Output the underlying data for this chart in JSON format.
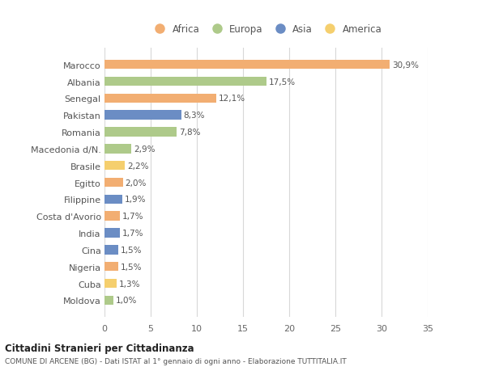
{
  "countries": [
    "Marocco",
    "Albania",
    "Senegal",
    "Pakistan",
    "Romania",
    "Macedonia d/N.",
    "Brasile",
    "Egitto",
    "Filippine",
    "Costa d'Avorio",
    "India",
    "Cina",
    "Nigeria",
    "Cuba",
    "Moldova"
  ],
  "values": [
    30.9,
    17.5,
    12.1,
    8.3,
    7.8,
    2.9,
    2.2,
    2.0,
    1.9,
    1.7,
    1.7,
    1.5,
    1.5,
    1.3,
    1.0
  ],
  "labels": [
    "30,9%",
    "17,5%",
    "12,1%",
    "8,3%",
    "7,8%",
    "2,9%",
    "2,2%",
    "2,0%",
    "1,9%",
    "1,7%",
    "1,7%",
    "1,5%",
    "1,5%",
    "1,3%",
    "1,0%"
  ],
  "continents": [
    "Africa",
    "Europa",
    "Africa",
    "Asia",
    "Europa",
    "Europa",
    "America",
    "Africa",
    "Asia",
    "Africa",
    "Asia",
    "Asia",
    "Africa",
    "America",
    "Europa"
  ],
  "continent_colors": {
    "Africa": "#F2AE72",
    "Europa": "#AECA8A",
    "Asia": "#6B8DC4",
    "America": "#F5CF6E"
  },
  "legend_order": [
    "Africa",
    "Europa",
    "Asia",
    "America"
  ],
  "xlim": [
    0,
    35
  ],
  "xticks": [
    0,
    5,
    10,
    15,
    20,
    25,
    30,
    35
  ],
  "title": "Cittadini Stranieri per Cittadinanza",
  "subtitle": "COMUNE DI ARCENE (BG) - Dati ISTAT al 1° gennaio di ogni anno - Elaborazione TUTTITALIA.IT",
  "background_color": "#ffffff",
  "grid_color": "#d8d8d8",
  "bar_height": 0.55
}
